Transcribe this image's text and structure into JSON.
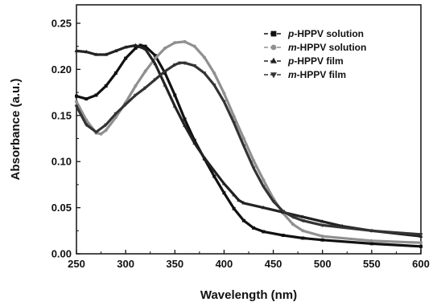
{
  "chart_data": {
    "type": "line",
    "title": "",
    "xlabel": "Wavelength (nm)",
    "ylabel": "Absorbance (a.u.)",
    "xlim": [
      250,
      600
    ],
    "ylim": [
      0.0,
      0.27
    ],
    "xticks": [
      250,
      300,
      350,
      400,
      450,
      500,
      550,
      600
    ],
    "yticks": [
      0.0,
      0.05,
      0.1,
      0.15,
      0.2,
      0.25
    ],
    "xtick_labels": [
      "250",
      "300",
      "350",
      "400",
      "450",
      "500",
      "550",
      "600"
    ],
    "ytick_labels": [
      "0.00",
      "0.05",
      "0.10",
      "0.15",
      "0.20",
      "0.25"
    ],
    "grid": false,
    "legend_position": "top-right",
    "series": [
      {
        "name_italic": "p",
        "name_rest": "-HPPV solution",
        "color": "#111111",
        "marker": "square",
        "points": [
          [
            250,
            0.171
          ],
          [
            260,
            0.168
          ],
          [
            270,
            0.172
          ],
          [
            280,
            0.182
          ],
          [
            290,
            0.196
          ],
          [
            300,
            0.212
          ],
          [
            310,
            0.223
          ],
          [
            315,
            0.226
          ],
          [
            320,
            0.225
          ],
          [
            330,
            0.215
          ],
          [
            340,
            0.196
          ],
          [
            350,
            0.172
          ],
          [
            360,
            0.146
          ],
          [
            370,
            0.123
          ],
          [
            380,
            0.103
          ],
          [
            390,
            0.084
          ],
          [
            400,
            0.066
          ],
          [
            410,
            0.049
          ],
          [
            420,
            0.036
          ],
          [
            430,
            0.028
          ],
          [
            440,
            0.024
          ],
          [
            460,
            0.02
          ],
          [
            480,
            0.017
          ],
          [
            500,
            0.015
          ],
          [
            550,
            0.011
          ],
          [
            600,
            0.008
          ]
        ]
      },
      {
        "name_italic": "m",
        "name_rest": "-HPPV solution",
        "color": "#909090",
        "marker": "circle",
        "points": [
          [
            250,
            0.165
          ],
          [
            260,
            0.145
          ],
          [
            270,
            0.131
          ],
          [
            275,
            0.13
          ],
          [
            280,
            0.134
          ],
          [
            290,
            0.148
          ],
          [
            300,
            0.164
          ],
          [
            310,
            0.182
          ],
          [
            320,
            0.198
          ],
          [
            330,
            0.212
          ],
          [
            340,
            0.223
          ],
          [
            350,
            0.229
          ],
          [
            360,
            0.23
          ],
          [
            370,
            0.225
          ],
          [
            380,
            0.213
          ],
          [
            390,
            0.196
          ],
          [
            400,
            0.174
          ],
          [
            410,
            0.149
          ],
          [
            420,
            0.125
          ],
          [
            430,
            0.101
          ],
          [
            440,
            0.08
          ],
          [
            450,
            0.06
          ],
          [
            460,
            0.044
          ],
          [
            470,
            0.032
          ],
          [
            480,
            0.025
          ],
          [
            500,
            0.019
          ],
          [
            550,
            0.014
          ],
          [
            600,
            0.012
          ]
        ]
      },
      {
        "name_italic": "p",
        "name_rest": "-HPPV film",
        "color": "#222222",
        "marker": "triangle-up",
        "points": [
          [
            250,
            0.22
          ],
          [
            260,
            0.219
          ],
          [
            270,
            0.216
          ],
          [
            280,
            0.216
          ],
          [
            290,
            0.22
          ],
          [
            300,
            0.224
          ],
          [
            310,
            0.226
          ],
          [
            320,
            0.222
          ],
          [
            330,
            0.206
          ],
          [
            340,
            0.183
          ],
          [
            350,
            0.16
          ],
          [
            360,
            0.139
          ],
          [
            370,
            0.12
          ],
          [
            380,
            0.104
          ],
          [
            390,
            0.09
          ],
          [
            400,
            0.076
          ],
          [
            410,
            0.064
          ],
          [
            415,
            0.058
          ],
          [
            420,
            0.055
          ],
          [
            440,
            0.05
          ],
          [
            460,
            0.045
          ],
          [
            480,
            0.04
          ],
          [
            500,
            0.035
          ],
          [
            520,
            0.03
          ],
          [
            550,
            0.025
          ],
          [
            600,
            0.019
          ]
        ]
      },
      {
        "name_italic": "m",
        "name_rest": "-HPPV film",
        "color": "#333333",
        "marker": "triangle-down",
        "points": [
          [
            250,
            0.16
          ],
          [
            260,
            0.14
          ],
          [
            270,
            0.132
          ],
          [
            280,
            0.14
          ],
          [
            290,
            0.152
          ],
          [
            300,
            0.162
          ],
          [
            310,
            0.172
          ],
          [
            320,
            0.18
          ],
          [
            330,
            0.189
          ],
          [
            340,
            0.198
          ],
          [
            350,
            0.205
          ],
          [
            355,
            0.207
          ],
          [
            360,
            0.207
          ],
          [
            370,
            0.204
          ],
          [
            380,
            0.196
          ],
          [
            390,
            0.183
          ],
          [
            400,
            0.165
          ],
          [
            410,
            0.142
          ],
          [
            420,
            0.117
          ],
          [
            430,
            0.093
          ],
          [
            440,
            0.073
          ],
          [
            450,
            0.057
          ],
          [
            460,
            0.046
          ],
          [
            470,
            0.04
          ],
          [
            480,
            0.036
          ],
          [
            500,
            0.031
          ],
          [
            550,
            0.025
          ],
          [
            600,
            0.021
          ]
        ]
      }
    ]
  }
}
